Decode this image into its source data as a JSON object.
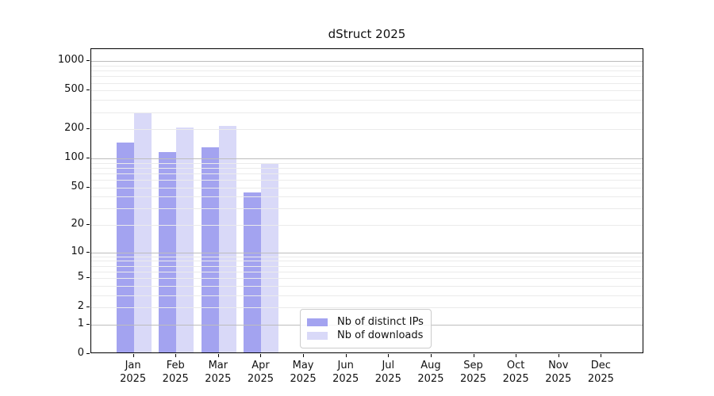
{
  "chart_data": {
    "type": "bar",
    "title": "dStruct 2025",
    "categories": [
      "Jan",
      "Feb",
      "Mar",
      "Apr",
      "May",
      "Jun",
      "Jul",
      "Aug",
      "Sep",
      "Oct",
      "Nov",
      "Dec"
    ],
    "year": "2025",
    "series": [
      {
        "name": "Nb of distinct IPs",
        "color": "#a3a3f0",
        "values": [
          145,
          117,
          130,
          44,
          0,
          0,
          0,
          0,
          0,
          0,
          0,
          0
        ]
      },
      {
        "name": "Nb of downloads",
        "color": "#d9d9f8",
        "values": [
          300,
          210,
          215,
          88,
          0,
          0,
          0,
          0,
          0,
          0,
          0,
          0
        ]
      }
    ],
    "xlabel": "",
    "ylabel": "",
    "y_ticks": [
      0,
      1,
      2,
      5,
      10,
      20,
      50,
      100,
      200,
      500,
      1000
    ],
    "y_scale": "log1p",
    "ylim": [
      0,
      1332
    ],
    "grid": true,
    "legend": {
      "position": "bottom-center",
      "entries": [
        "Nb of distinct IPs",
        "Nb of downloads"
      ]
    }
  }
}
